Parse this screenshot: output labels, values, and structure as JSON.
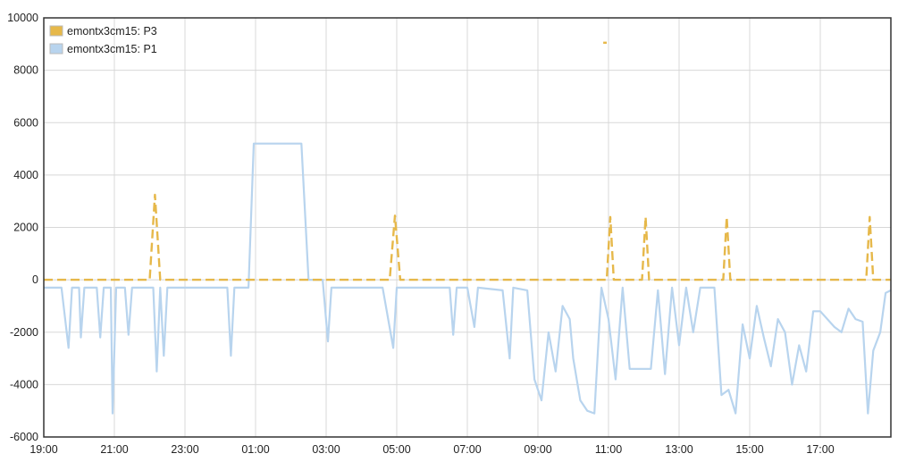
{
  "chart_data": {
    "type": "line",
    "title": "",
    "xlabel": "",
    "ylabel": "",
    "ylim": [
      -6000,
      10000
    ],
    "xlim": [
      0,
      24
    ],
    "x_unit": "hours since 19:00",
    "yticks": [
      "10000",
      "8000",
      "6000",
      "4000",
      "2000",
      "0",
      "-2000",
      "-4000",
      "-6000"
    ],
    "ytick_values": [
      10000,
      8000,
      6000,
      4000,
      2000,
      0,
      -2000,
      -4000,
      -6000
    ],
    "xticks": [
      "19:00",
      "21:00",
      "23:00",
      "01:00",
      "03:00",
      "05:00",
      "07:00",
      "09:00",
      "11:00",
      "13:00",
      "15:00",
      "17:00"
    ],
    "xtick_values": [
      0,
      2,
      4,
      6,
      8,
      10,
      12,
      14,
      16,
      18,
      20,
      22
    ],
    "grid": true,
    "legend_position": "top-left",
    "series": [
      {
        "name": "emontx3cm15: P3",
        "color": "#e6b84a",
        "dashed": true,
        "points": [
          [
            0,
            0
          ],
          [
            3.0,
            0
          ],
          [
            3.15,
            3250
          ],
          [
            3.3,
            0
          ],
          [
            9.8,
            0
          ],
          [
            9.95,
            2450
          ],
          [
            10.1,
            0
          ],
          [
            15.95,
            0
          ],
          [
            16.05,
            2400
          ],
          [
            16.15,
            0
          ],
          [
            16.95,
            0
          ],
          [
            17.05,
            2400
          ],
          [
            17.15,
            0
          ],
          [
            19.25,
            0
          ],
          [
            19.35,
            2400
          ],
          [
            19.45,
            0
          ],
          [
            23.3,
            0
          ],
          [
            23.4,
            2400
          ],
          [
            23.5,
            0
          ],
          [
            24,
            0
          ]
        ]
      },
      {
        "name": "emontx3cm15: P3 (isolated)",
        "color": "#e6b84a",
        "points": [
          [
            15.85,
            9050
          ],
          [
            15.95,
            9050
          ]
        ]
      },
      {
        "name": "emontx3cm15: P1",
        "color": "#b8d4ee",
        "points": [
          [
            0,
            -300
          ],
          [
            0.5,
            -300
          ],
          [
            0.7,
            -2600
          ],
          [
            0.8,
            -300
          ],
          [
            1.0,
            -300
          ],
          [
            1.05,
            -2200
          ],
          [
            1.15,
            -300
          ],
          [
            1.5,
            -300
          ],
          [
            1.6,
            -2200
          ],
          [
            1.7,
            -300
          ],
          [
            1.9,
            -300
          ],
          [
            1.95,
            -5100
          ],
          [
            2.05,
            -300
          ],
          [
            2.3,
            -300
          ],
          [
            2.4,
            -2100
          ],
          [
            2.5,
            -300
          ],
          [
            3.1,
            -300
          ],
          [
            3.2,
            -3500
          ],
          [
            3.3,
            -300
          ],
          [
            3.4,
            -2900
          ],
          [
            3.5,
            -300
          ],
          [
            5.2,
            -300
          ],
          [
            5.3,
            -2900
          ],
          [
            5.4,
            -300
          ],
          [
            5.8,
            -300
          ],
          [
            5.95,
            5200
          ],
          [
            7.3,
            5200
          ],
          [
            7.5,
            0
          ],
          [
            7.9,
            0
          ],
          [
            8.05,
            -2350
          ],
          [
            8.15,
            -300
          ],
          [
            9.6,
            -300
          ],
          [
            9.9,
            -2600
          ],
          [
            10.0,
            -300
          ],
          [
            11.5,
            -300
          ],
          [
            11.6,
            -2100
          ],
          [
            11.7,
            -300
          ],
          [
            12.0,
            -300
          ],
          [
            12.2,
            -1800
          ],
          [
            12.3,
            -300
          ],
          [
            13.0,
            -400
          ],
          [
            13.2,
            -3000
          ],
          [
            13.3,
            -300
          ],
          [
            13.7,
            -400
          ],
          [
            13.9,
            -3800
          ],
          [
            14.1,
            -4600
          ],
          [
            14.3,
            -2000
          ],
          [
            14.5,
            -3500
          ],
          [
            14.7,
            -1000
          ],
          [
            14.9,
            -1500
          ],
          [
            15.0,
            -3000
          ],
          [
            15.2,
            -4600
          ],
          [
            15.4,
            -5000
          ],
          [
            15.6,
            -5100
          ],
          [
            15.8,
            -300
          ],
          [
            16.0,
            -1500
          ],
          [
            16.2,
            -3800
          ],
          [
            16.4,
            -300
          ],
          [
            16.6,
            -3400
          ],
          [
            17.2,
            -3400
          ],
          [
            17.4,
            -400
          ],
          [
            17.6,
            -3600
          ],
          [
            17.8,
            -300
          ],
          [
            18.0,
            -2500
          ],
          [
            18.2,
            -300
          ],
          [
            18.4,
            -2000
          ],
          [
            18.6,
            -300
          ],
          [
            19.0,
            -300
          ],
          [
            19.2,
            -4400
          ],
          [
            19.4,
            -4200
          ],
          [
            19.6,
            -5100
          ],
          [
            19.8,
            -1700
          ],
          [
            20.0,
            -3000
          ],
          [
            20.2,
            -1000
          ],
          [
            20.4,
            -2200
          ],
          [
            20.6,
            -3300
          ],
          [
            20.8,
            -1500
          ],
          [
            21.0,
            -2000
          ],
          [
            21.2,
            -4000
          ],
          [
            21.4,
            -2500
          ],
          [
            21.6,
            -3500
          ],
          [
            21.8,
            -1200
          ],
          [
            22.0,
            -1200
          ],
          [
            22.4,
            -1800
          ],
          [
            22.6,
            -2000
          ],
          [
            22.8,
            -1100
          ],
          [
            23.0,
            -1500
          ],
          [
            23.2,
            -1600
          ],
          [
            23.35,
            -5100
          ],
          [
            23.5,
            -2700
          ],
          [
            23.7,
            -2000
          ],
          [
            23.85,
            -500
          ],
          [
            24,
            -400
          ]
        ]
      }
    ]
  }
}
